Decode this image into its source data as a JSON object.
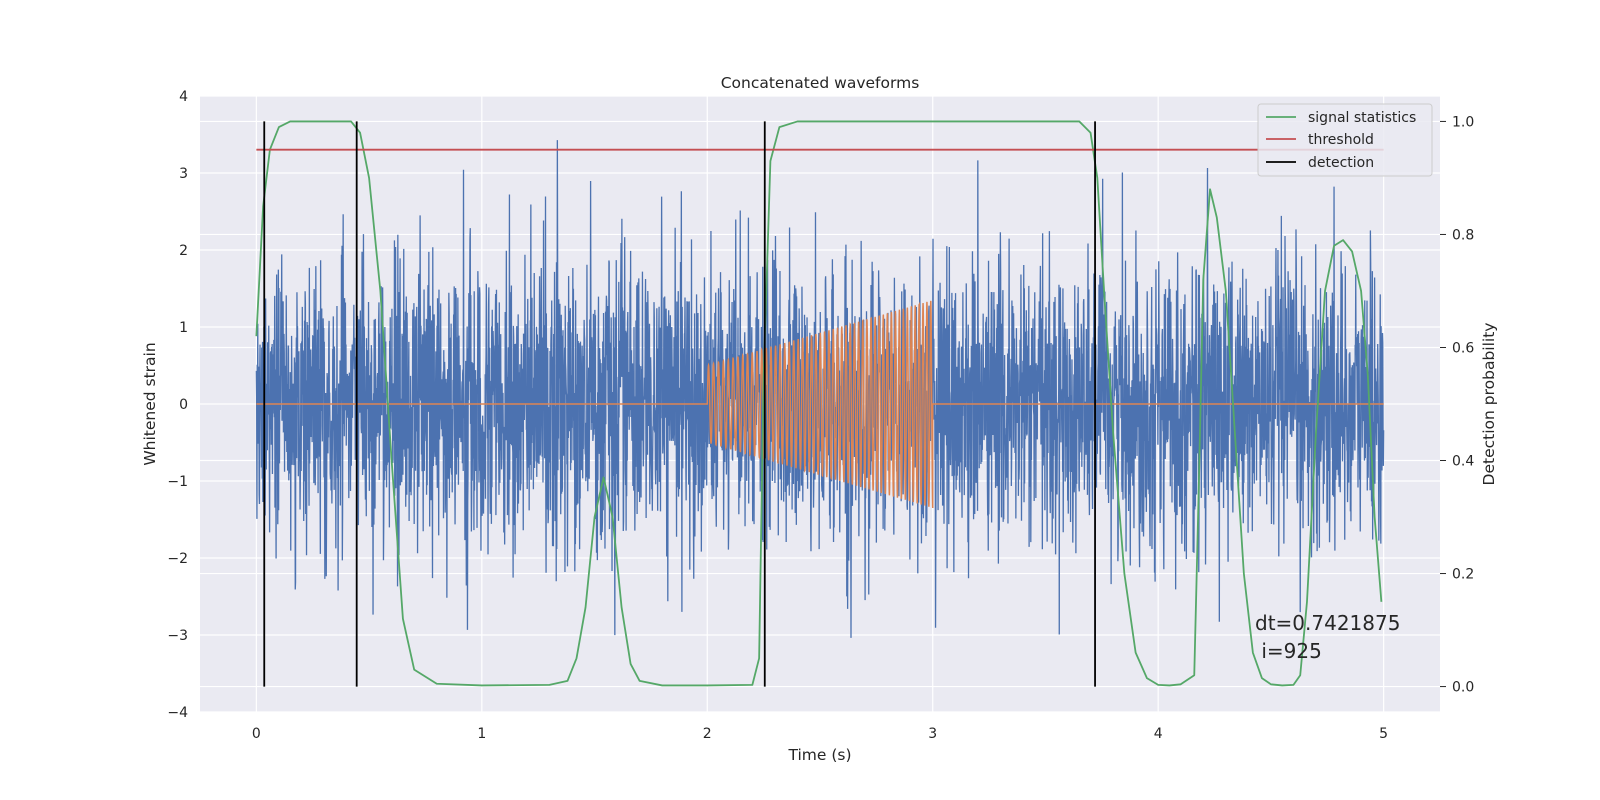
{
  "chart_data": {
    "type": "line",
    "title": "Concatenated waveforms",
    "xlabel": "Time (s)",
    "ylabel": "Whitened strain",
    "ylabel_right": "Detection probability",
    "xlim": [
      -0.25,
      5.25
    ],
    "ylim": [
      -4,
      4
    ],
    "ylim_right": [
      -0.045,
      1.045
    ],
    "x_ticks": [
      0,
      1,
      2,
      3,
      4,
      5
    ],
    "y_ticks": [
      4,
      3,
      2,
      1,
      0,
      -1,
      -2,
      -3,
      -4
    ],
    "y_tick_labels": [
      "4",
      "3",
      "2",
      "1",
      "0",
      "−1",
      "−2",
      "−3",
      "−4"
    ],
    "y_right_ticks": [
      1.0,
      0.8,
      0.6,
      0.4,
      0.2,
      0.0
    ],
    "y_right_tick_labels": [
      "1.0",
      "0.8",
      "0.6",
      "0.4",
      "0.2",
      "0.0"
    ],
    "grid": true,
    "legend_position": "top-right",
    "legend": [
      {
        "label": "signal statistics",
        "color": "#55a868"
      },
      {
        "label": "threshold",
        "color": "#c44e52"
      },
      {
        "label": "detection",
        "color": "#000000"
      }
    ],
    "annotation": {
      "line1": "dt=0.7421875",
      "line2": " i=925"
    },
    "series": [
      {
        "name": "whitened strain",
        "axis": "left",
        "color": "#4c72b0",
        "kind": "noise",
        "x_range": [
          0,
          5
        ],
        "std": 0.9,
        "max_abs": 3.6
      },
      {
        "name": "injected waveform",
        "axis": "left",
        "color": "#dd8452",
        "kind": "chirp",
        "x_range": [
          0,
          5
        ],
        "active_range": [
          2.0,
          3.0
        ],
        "amplitude_start": 0.5,
        "amplitude_end": 1.35,
        "cycles": 45
      },
      {
        "name": "signal statistics",
        "axis": "right",
        "color": "#55a868",
        "x": [
          0.0,
          0.03,
          0.06,
          0.1,
          0.15,
          0.3,
          0.42,
          0.46,
          0.5,
          0.55,
          0.6,
          0.65,
          0.7,
          0.8,
          1.0,
          1.3,
          1.38,
          1.42,
          1.46,
          1.5,
          1.54,
          1.58,
          1.62,
          1.66,
          1.7,
          1.8,
          2.0,
          2.2,
          2.23,
          2.25,
          2.28,
          2.32,
          2.4,
          2.6,
          3.0,
          3.4,
          3.65,
          3.7,
          3.73,
          3.76,
          3.8,
          3.85,
          3.9,
          3.95,
          4.0,
          4.05,
          4.1,
          4.16,
          4.18,
          4.2,
          4.23,
          4.26,
          4.3,
          4.34,
          4.38,
          4.42,
          4.46,
          4.5,
          4.55,
          4.6,
          4.63,
          4.66,
          4.7,
          4.74,
          4.78,
          4.82,
          4.86,
          4.9,
          4.93,
          4.96,
          4.99
        ],
        "values": [
          0.62,
          0.85,
          0.95,
          0.99,
          1.0,
          1.0,
          1.0,
          0.98,
          0.9,
          0.7,
          0.4,
          0.12,
          0.03,
          0.005,
          0.002,
          0.003,
          0.01,
          0.05,
          0.14,
          0.3,
          0.37,
          0.3,
          0.14,
          0.04,
          0.01,
          0.002,
          0.002,
          0.003,
          0.05,
          0.55,
          0.93,
          0.99,
          1.0,
          1.0,
          1.0,
          1.0,
          1.0,
          0.98,
          0.9,
          0.7,
          0.45,
          0.2,
          0.06,
          0.015,
          0.003,
          0.002,
          0.004,
          0.02,
          0.35,
          0.72,
          0.88,
          0.83,
          0.7,
          0.45,
          0.2,
          0.06,
          0.015,
          0.004,
          0.002,
          0.003,
          0.02,
          0.15,
          0.45,
          0.7,
          0.78,
          0.79,
          0.77,
          0.7,
          0.55,
          0.3,
          0.15
        ]
      },
      {
        "name": "threshold",
        "axis": "right",
        "color": "#c44e52",
        "x": [
          0,
          5
        ],
        "values": [
          0.95,
          0.95
        ]
      },
      {
        "name": "detection",
        "axis": "right",
        "color": "#000000",
        "kind": "vlines",
        "x": [
          0.035,
          0.445,
          2.255,
          3.72
        ],
        "y_range": [
          0,
          1.0
        ]
      }
    ]
  }
}
